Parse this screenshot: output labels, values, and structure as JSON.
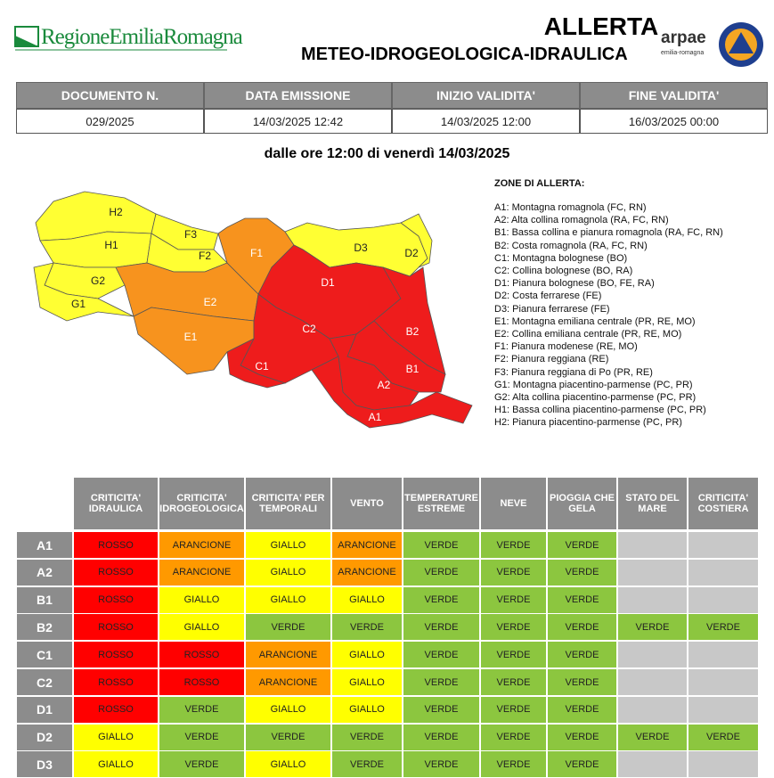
{
  "header": {
    "logo_text": "RegioneEmiliaRomagna",
    "title": "ALLERTA",
    "subtitle": "METEO-IDROGEOLOGICA-IDRAULICA",
    "arpae": "arpae",
    "arpae_sub": "emilia-romagna"
  },
  "info_table": {
    "headers": [
      "DOCUMENTO N.",
      "DATA EMISSIONE",
      "INIZIO VALIDITA'",
      "FINE VALIDITA'"
    ],
    "values": [
      "029/2025",
      "14/03/2025 12:42",
      "14/03/2025 12:00",
      "16/03/2025 00:00"
    ]
  },
  "date_line": "dalle ore 12:00 di venerdì 14/03/2025",
  "map": {
    "zones": [
      {
        "label": "H2",
        "color": "#ffff33"
      },
      {
        "label": "H1",
        "color": "#ffff33"
      },
      {
        "label": "G2",
        "color": "#ffff33"
      },
      {
        "label": "G1",
        "color": "#ffff33"
      },
      {
        "label": "F3",
        "color": "#ffff33"
      },
      {
        "label": "F2",
        "color": "#ffff33"
      },
      {
        "label": "E2",
        "color": "#f7931e"
      },
      {
        "label": "E1",
        "color": "#f7931e"
      },
      {
        "label": "F1",
        "color": "#f7931e"
      },
      {
        "label": "D3",
        "color": "#ffff33"
      },
      {
        "label": "D2",
        "color": "#ffff33"
      },
      {
        "label": "D1",
        "color": "#ee1c1c"
      },
      {
        "label": "C2",
        "color": "#ee1c1c"
      },
      {
        "label": "C1",
        "color": "#ee1c1c"
      },
      {
        "label": "B2",
        "color": "#ee1c1c"
      },
      {
        "label": "B1",
        "color": "#ee1c1c"
      },
      {
        "label": "A2",
        "color": "#ee1c1c"
      },
      {
        "label": "A1",
        "color": "#ee1c1c"
      }
    ]
  },
  "legend": {
    "title": "ZONE DI ALLERTA:",
    "items": [
      "A1: Montagna romagnola (FC, RN)",
      "A2: Alta collina romagnola (RA, FC, RN)",
      "B1: Bassa collina e pianura romagnola (RA, FC, RN)",
      "B2: Costa romagnola (RA, FC, RN)",
      "C1: Montagna bolognese (BO)",
      "C2: Collina bolognese (BO, RA)",
      "D1: Pianura bolognese (BO, FE, RA)",
      "D2: Costa ferrarese (FE)",
      "D3: Pianura ferrarese (FE)",
      "E1: Montagna emiliana centrale (PR, RE, MO)",
      "E2: Collina emiliana centrale (PR, RE, MO)",
      "F1: Pianura modenese (RE, MO)",
      "F2: Pianura reggiana (RE)",
      "F3: Pianura reggiana di Po (PR, RE)",
      "G1: Montagna piacentino-parmense (PC, PR)",
      "G2: Alta collina piacentino-parmense (PC, PR)",
      "H1: Bassa collina piacentino-parmense (PC, PR)",
      "H2: Pianura piacentino-parmense (PC, PR)"
    ]
  },
  "alert_table": {
    "headers": [
      "CRITICITA' IDRAULICA",
      "CRITICITA' IDROGEOLOGICA",
      "CRITICITA' PER TEMPORALI",
      "VENTO",
      "TEMPERATURE ESTREME",
      "NEVE",
      "PIOGGIA CHE GELA",
      "STATO DEL MARE",
      "CRITICITA' COSTIERA"
    ],
    "level_colors": {
      "ROSSO": "#ff0000",
      "ARANCIONE": "#ff9900",
      "GIALLO": "#ffff00",
      "VERDE": "#8cc63f"
    },
    "empty_color": "#c8c8c8",
    "rows": [
      {
        "zone": "A1",
        "cells": [
          "ROSSO",
          "ARANCIONE",
          "GIALLO",
          "ARANCIONE",
          "VERDE",
          "VERDE",
          "VERDE",
          null,
          null
        ]
      },
      {
        "zone": "A2",
        "cells": [
          "ROSSO",
          "ARANCIONE",
          "GIALLO",
          "ARANCIONE",
          "VERDE",
          "VERDE",
          "VERDE",
          null,
          null
        ]
      },
      {
        "zone": "B1",
        "cells": [
          "ROSSO",
          "GIALLO",
          "GIALLO",
          "GIALLO",
          "VERDE",
          "VERDE",
          "VERDE",
          null,
          null
        ]
      },
      {
        "zone": "B2",
        "cells": [
          "ROSSO",
          "GIALLO",
          "VERDE",
          "VERDE",
          "VERDE",
          "VERDE",
          "VERDE",
          "VERDE",
          "VERDE"
        ]
      },
      {
        "zone": "C1",
        "cells": [
          "ROSSO",
          "ROSSO",
          "ARANCIONE",
          "GIALLO",
          "VERDE",
          "VERDE",
          "VERDE",
          null,
          null
        ]
      },
      {
        "zone": "C2",
        "cells": [
          "ROSSO",
          "ROSSO",
          "ARANCIONE",
          "GIALLO",
          "VERDE",
          "VERDE",
          "VERDE",
          null,
          null
        ]
      },
      {
        "zone": "D1",
        "cells": [
          "ROSSO",
          "VERDE",
          "GIALLO",
          "GIALLO",
          "VERDE",
          "VERDE",
          "VERDE",
          null,
          null
        ]
      },
      {
        "zone": "D2",
        "cells": [
          "GIALLO",
          "VERDE",
          "VERDE",
          "VERDE",
          "VERDE",
          "VERDE",
          "VERDE",
          "VERDE",
          "VERDE"
        ]
      },
      {
        "zone": "D3",
        "cells": [
          "GIALLO",
          "VERDE",
          "GIALLO",
          "VERDE",
          "VERDE",
          "VERDE",
          "VERDE",
          null,
          null
        ]
      }
    ]
  }
}
